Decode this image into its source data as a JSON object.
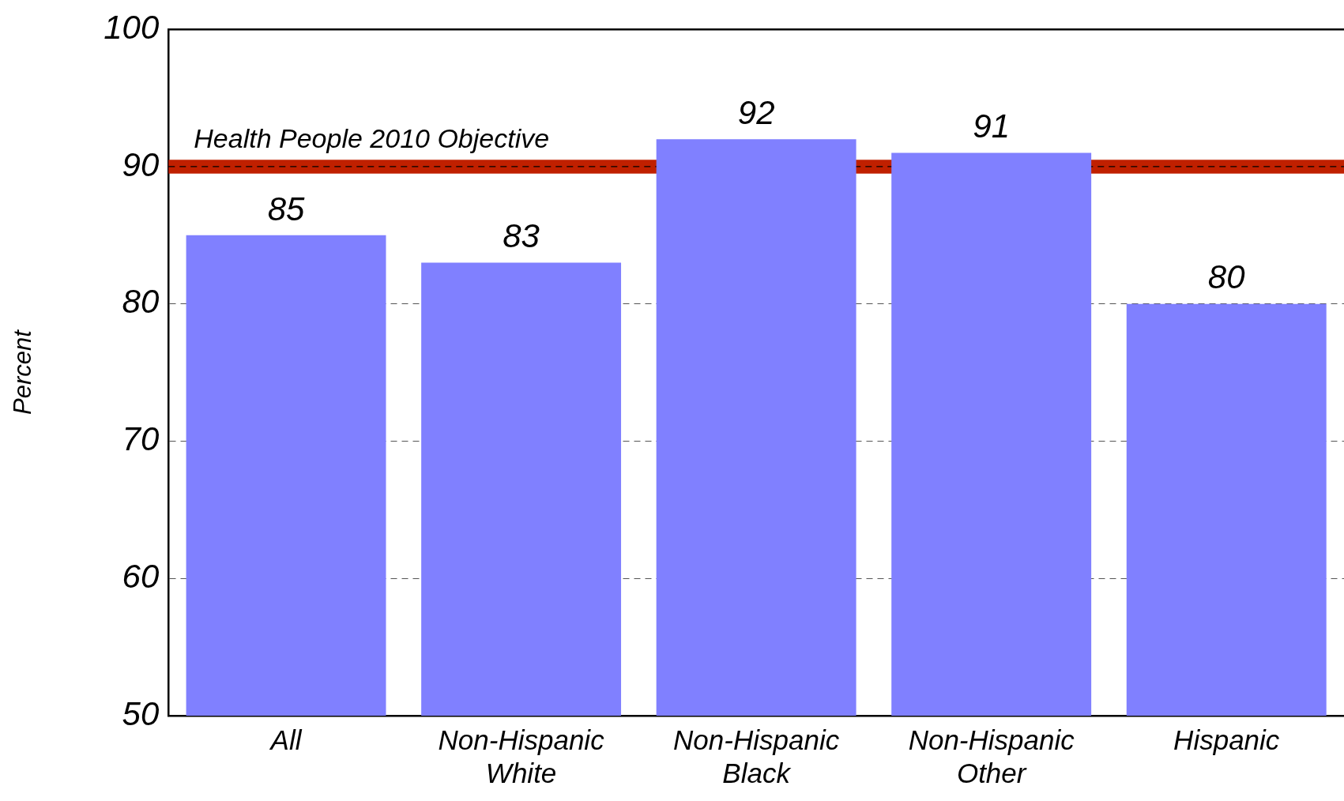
{
  "chart_data": {
    "type": "bar",
    "ylabel": "Percent",
    "categories": [
      "All",
      "Non-Hispanic White",
      "Non-Hispanic Black",
      "Non-Hispanic Other",
      "Hispanic"
    ],
    "values": [
      85,
      83,
      92,
      91,
      80
    ],
    "color": "#8080ff",
    "ylim": [
      50,
      100
    ],
    "yticks": [
      50,
      60,
      70,
      80,
      90,
      100
    ],
    "grid": "y",
    "data_labels": true,
    "bands": [
      {
        "axis": "y",
        "from": 89.5,
        "to": 90.5,
        "color": "#c02000"
      }
    ],
    "ref_lines": [
      {
        "axis": "y",
        "value": 90,
        "label": "Health People 2010 Objective",
        "color": "#000000",
        "line_style": "dashed"
      }
    ]
  }
}
